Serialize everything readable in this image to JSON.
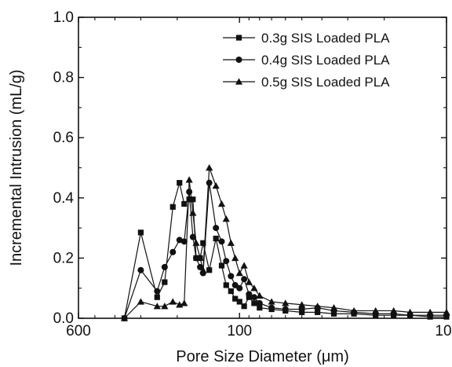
{
  "chart_data": {
    "type": "line",
    "title": "",
    "xlabel": "Pore Size Diameter (μm)",
    "ylabel": "Incremental Intrusion (mL/g)",
    "x_scale": "log",
    "x_reversed": true,
    "xlim": [
      600,
      10
    ],
    "ylim": [
      0.0,
      1.0
    ],
    "x_ticks": [
      600,
      100,
      10
    ],
    "x_tick_labels": [
      "600",
      "100",
      "10"
    ],
    "y_ticks": [
      0.0,
      0.2,
      0.4,
      0.6,
      0.8,
      1.0
    ],
    "y_tick_labels": [
      "0.0",
      "0.2",
      "0.4",
      "0.6",
      "0.8",
      "1.0"
    ],
    "grid": false,
    "legend_position": "top-right",
    "series": [
      {
        "name": "0.3g SIS Loaded PLA",
        "marker": "square",
        "points": [
          [
            360,
            0.0
          ],
          [
            300,
            0.285
          ],
          [
            250,
            0.07
          ],
          [
            230,
            0.12
          ],
          [
            210,
            0.37
          ],
          [
            195,
            0.45
          ],
          [
            185,
            0.38
          ],
          [
            175,
            0.395
          ],
          [
            168,
            0.395
          ],
          [
            162,
            0.2
          ],
          [
            155,
            0.2
          ],
          [
            150,
            0.25
          ],
          [
            140,
            0.16
          ],
          [
            130,
            0.265
          ],
          [
            122,
            0.175
          ],
          [
            116,
            0.11
          ],
          [
            110,
            0.09
          ],
          [
            105,
            0.065
          ],
          [
            100,
            0.055
          ],
          [
            95,
            0.04
          ],
          [
            90,
            0.07
          ],
          [
            85,
            0.05
          ],
          [
            80,
            0.035
          ],
          [
            70,
            0.03
          ],
          [
            60,
            0.025
          ],
          [
            50,
            0.02
          ],
          [
            42,
            0.02
          ],
          [
            35,
            0.015
          ],
          [
            28,
            0.015
          ],
          [
            22,
            0.01
          ],
          [
            18,
            0.01
          ],
          [
            15,
            0.01
          ],
          [
            12,
            0.005
          ],
          [
            10,
            0.005
          ]
        ]
      },
      {
        "name": "0.4g SIS Loaded PLA",
        "marker": "circle",
        "points": [
          [
            360,
            0.0
          ],
          [
            300,
            0.16
          ],
          [
            250,
            0.09
          ],
          [
            230,
            0.17
          ],
          [
            210,
            0.22
          ],
          [
            195,
            0.26
          ],
          [
            185,
            0.255
          ],
          [
            175,
            0.42
          ],
          [
            168,
            0.27
          ],
          [
            162,
            0.2
          ],
          [
            155,
            0.17
          ],
          [
            150,
            0.15
          ],
          [
            140,
            0.45
          ],
          [
            130,
            0.3
          ],
          [
            122,
            0.255
          ],
          [
            116,
            0.19
          ],
          [
            110,
            0.14
          ],
          [
            105,
            0.11
          ],
          [
            100,
            0.1
          ],
          [
            95,
            0.13
          ],
          [
            90,
            0.08
          ],
          [
            85,
            0.07
          ],
          [
            80,
            0.05
          ],
          [
            70,
            0.035
          ],
          [
            60,
            0.03
          ],
          [
            50,
            0.03
          ],
          [
            42,
            0.035
          ],
          [
            35,
            0.025
          ],
          [
            28,
            0.02
          ],
          [
            22,
            0.015
          ],
          [
            18,
            0.015
          ],
          [
            15,
            0.01
          ],
          [
            12,
            0.01
          ],
          [
            10,
            0.01
          ]
        ]
      },
      {
        "name": "0.5g SIS Loaded PLA",
        "marker": "triangle",
        "points": [
          [
            360,
            0.0
          ],
          [
            300,
            0.055
          ],
          [
            250,
            0.04
          ],
          [
            230,
            0.04
          ],
          [
            210,
            0.055
          ],
          [
            195,
            0.045
          ],
          [
            185,
            0.05
          ],
          [
            175,
            0.46
          ],
          [
            168,
            0.35
          ],
          [
            162,
            0.25
          ],
          [
            155,
            0.2
          ],
          [
            150,
            0.16
          ],
          [
            140,
            0.5
          ],
          [
            130,
            0.44
          ],
          [
            122,
            0.38
          ],
          [
            116,
            0.33
          ],
          [
            110,
            0.25
          ],
          [
            105,
            0.2
          ],
          [
            100,
            0.15
          ],
          [
            95,
            0.175
          ],
          [
            90,
            0.12
          ],
          [
            85,
            0.1
          ],
          [
            80,
            0.075
          ],
          [
            70,
            0.055
          ],
          [
            60,
            0.05
          ],
          [
            50,
            0.045
          ],
          [
            42,
            0.04
          ],
          [
            35,
            0.035
          ],
          [
            28,
            0.025
          ],
          [
            22,
            0.025
          ],
          [
            18,
            0.025
          ],
          [
            15,
            0.02
          ],
          [
            12,
            0.02
          ],
          [
            10,
            0.02
          ]
        ]
      }
    ]
  }
}
